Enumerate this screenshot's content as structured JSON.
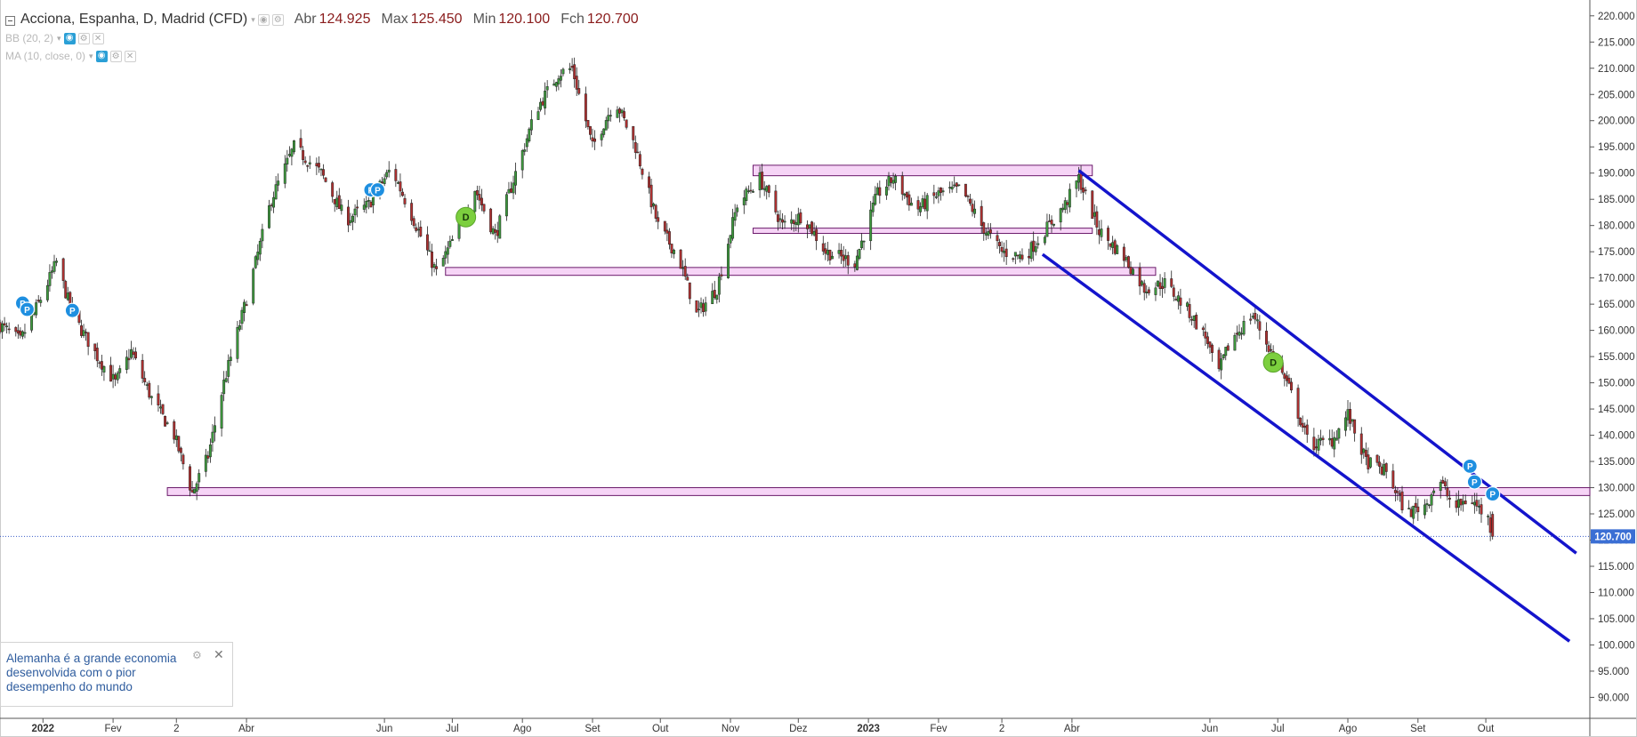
{
  "legend": {
    "title": "Acciona, Espanha, D, Madrid (CFD)",
    "open_label": "Abr",
    "open_value": "124.925",
    "high_label": "Max",
    "high_value": "125.450",
    "low_label": "Min",
    "low_value": "120.100",
    "close_label": "Fch",
    "close_value": "120.700",
    "indicators": [
      {
        "label": "BB (20, 2)"
      },
      {
        "label": "MA (10, close, 0)"
      }
    ]
  },
  "news": {
    "text": "Alemanha é a grande economia desenvolvida com o pior desempenho do mundo"
  },
  "chart_data": {
    "type": "candlestick",
    "title": "Acciona, Espanha, D, Madrid (CFD)",
    "ylim": [
      86,
      222
    ],
    "y_ticks": [
      90,
      95,
      100,
      105,
      110,
      115,
      120,
      125,
      130,
      135,
      140,
      145,
      150,
      155,
      160,
      165,
      170,
      175,
      180,
      185,
      190,
      195,
      200,
      205,
      210,
      215,
      220
    ],
    "y_tick_labels": [
      "90.000",
      "95.000",
      "100.000",
      "105.000",
      "110.000",
      "115.000",
      "120.000",
      "125.000",
      "130.000",
      "135.000",
      "140.000",
      "145.000",
      "150.000",
      "155.000",
      "160.000",
      "165.000",
      "170.000",
      "175.000",
      "180.000",
      "185.000",
      "190.000",
      "195.000",
      "200.000",
      "205.000",
      "210.000",
      "215.000",
      "220.000"
    ],
    "x_range": [
      "2021-12-13",
      "2023-11-16"
    ],
    "x_ticks": [
      {
        "date": "2022-01-01",
        "label": "2022",
        "bold": true
      },
      {
        "date": "2022-02-01",
        "label": "Fev"
      },
      {
        "date": "2022-03-01",
        "label": "2"
      },
      {
        "date": "2022-04-01",
        "label": "Abr"
      },
      {
        "date": "2022-06-01",
        "label": "Jun"
      },
      {
        "date": "2022-07-01",
        "label": "Jul"
      },
      {
        "date": "2022-08-01",
        "label": "Ago"
      },
      {
        "date": "2022-09-01",
        "label": "Set"
      },
      {
        "date": "2022-10-01",
        "label": "Out"
      },
      {
        "date": "2022-11-01",
        "label": "Nov"
      },
      {
        "date": "2022-12-01",
        "label": "Dez"
      },
      {
        "date": "2023-01-01",
        "label": "2023",
        "bold": true
      },
      {
        "date": "2023-02-01",
        "label": "Fev"
      },
      {
        "date": "2023-03-01",
        "label": "2"
      },
      {
        "date": "2023-04-01",
        "label": "Abr"
      },
      {
        "date": "2023-06-01",
        "label": "Jun"
      },
      {
        "date": "2023-07-01",
        "label": "Jul"
      },
      {
        "date": "2023-08-01",
        "label": "Ago"
      },
      {
        "date": "2023-09-01",
        "label": "Set"
      },
      {
        "date": "2023-10-01",
        "label": "Out"
      }
    ],
    "last_price": {
      "value": 120.7,
      "label": "120.700"
    },
    "price_path": [
      [
        "2021-12-13",
        161
      ],
      [
        "2021-12-22",
        158
      ],
      [
        "2021-12-31",
        166
      ],
      [
        "2022-01-07",
        173
      ],
      [
        "2022-01-14",
        163
      ],
      [
        "2022-01-25",
        155
      ],
      [
        "2022-02-02",
        150
      ],
      [
        "2022-02-09",
        156
      ],
      [
        "2022-02-18",
        147
      ],
      [
        "2022-02-28",
        140
      ],
      [
        "2022-03-08",
        129
      ],
      [
        "2022-03-15",
        136
      ],
      [
        "2022-03-22",
        150
      ],
      [
        "2022-04-01",
        166
      ],
      [
        "2022-04-12",
        185
      ],
      [
        "2022-04-22",
        195
      ],
      [
        "2022-05-04",
        190
      ],
      [
        "2022-05-15",
        181
      ],
      [
        "2022-05-25",
        184
      ],
      [
        "2022-06-04",
        191
      ],
      [
        "2022-06-14",
        181
      ],
      [
        "2022-06-24",
        171
      ],
      [
        "2022-07-01",
        177
      ],
      [
        "2022-07-11",
        187
      ],
      [
        "2022-07-20",
        178
      ],
      [
        "2022-07-29",
        190
      ],
      [
        "2022-08-07",
        202
      ],
      [
        "2022-08-17",
        209
      ],
      [
        "2022-08-23",
        210
      ],
      [
        "2022-09-01",
        195
      ],
      [
        "2022-09-11",
        204
      ],
      [
        "2022-09-20",
        195
      ],
      [
        "2022-09-30",
        180
      ],
      [
        "2022-10-09",
        174
      ],
      [
        "2022-10-17",
        163
      ],
      [
        "2022-10-26",
        168
      ],
      [
        "2022-11-04",
        184
      ],
      [
        "2022-11-14",
        189
      ],
      [
        "2022-11-24",
        180
      ],
      [
        "2022-12-03",
        182
      ],
      [
        "2022-12-13",
        175
      ],
      [
        "2022-12-26",
        173
      ],
      [
        "2023-01-05",
        186
      ],
      [
        "2023-01-12",
        189
      ],
      [
        "2023-01-22",
        183
      ],
      [
        "2023-02-01",
        186
      ],
      [
        "2023-02-11",
        187
      ],
      [
        "2023-02-20",
        180
      ],
      [
        "2023-03-01",
        175
      ],
      [
        "2023-03-11",
        174
      ],
      [
        "2023-03-20",
        179
      ],
      [
        "2023-03-29",
        184
      ],
      [
        "2023-04-04",
        189
      ],
      [
        "2023-04-13",
        179
      ],
      [
        "2023-04-24",
        174
      ],
      [
        "2023-05-03",
        168
      ],
      [
        "2023-05-12",
        169
      ],
      [
        "2023-05-22",
        164
      ],
      [
        "2023-05-31",
        158
      ],
      [
        "2023-06-04",
        151
      ],
      [
        "2023-06-10",
        158
      ],
      [
        "2023-06-20",
        163
      ],
      [
        "2023-06-29",
        155
      ],
      [
        "2023-07-06",
        149
      ],
      [
        "2023-07-15",
        138
      ],
      [
        "2023-07-25",
        139
      ],
      [
        "2023-08-01",
        144
      ],
      [
        "2023-08-09",
        135
      ],
      [
        "2023-08-18",
        133
      ],
      [
        "2023-08-27",
        125
      ],
      [
        "2023-09-05",
        127
      ],
      [
        "2023-09-10",
        132
      ],
      [
        "2023-09-17",
        126
      ],
      [
        "2023-09-24",
        128
      ],
      [
        "2023-10-02",
        124
      ],
      [
        "2023-10-04",
        120.7
      ]
    ],
    "annotations": {
      "zones": [
        {
          "from": "2022-02-25",
          "to": "2023-11-16",
          "low": 128.5,
          "high": 130.0
        },
        {
          "from": "2022-06-28",
          "to": "2023-05-08",
          "low": 170.5,
          "high": 172.0
        },
        {
          "from": "2022-11-11",
          "to": "2023-04-10",
          "low": 189.5,
          "high": 191.5
        },
        {
          "from": "2022-11-11",
          "to": "2023-04-10",
          "low": 178.5,
          "high": 179.5
        }
      ],
      "lines": [
        {
          "from": [
            "2023-04-04",
            190.5
          ],
          "to": [
            "2023-11-10",
            117.5
          ]
        },
        {
          "from": [
            "2023-03-19",
            174.5
          ],
          "to": [
            "2023-11-07",
            100.7
          ]
        }
      ],
      "markers": [
        {
          "type": "P",
          "date": "2021-12-23",
          "value": 165.2
        },
        {
          "type": "P",
          "date": "2021-12-25",
          "value": 164
        },
        {
          "type": "P",
          "date": "2022-01-14",
          "value": 163.8
        },
        {
          "type": "P",
          "date": "2022-05-26",
          "value": 186.8
        },
        {
          "type": "P",
          "date": "2022-05-29",
          "value": 186.8
        },
        {
          "type": "D",
          "date": "2022-07-07",
          "value": 181.6
        },
        {
          "type": "D",
          "date": "2023-06-29",
          "value": 153.9
        },
        {
          "type": "P",
          "date": "2023-09-24",
          "value": 134.1
        },
        {
          "type": "P",
          "date": "2023-09-26",
          "value": 131.1
        },
        {
          "type": "P",
          "date": "2023-10-04",
          "value": 128.8
        }
      ]
    }
  }
}
